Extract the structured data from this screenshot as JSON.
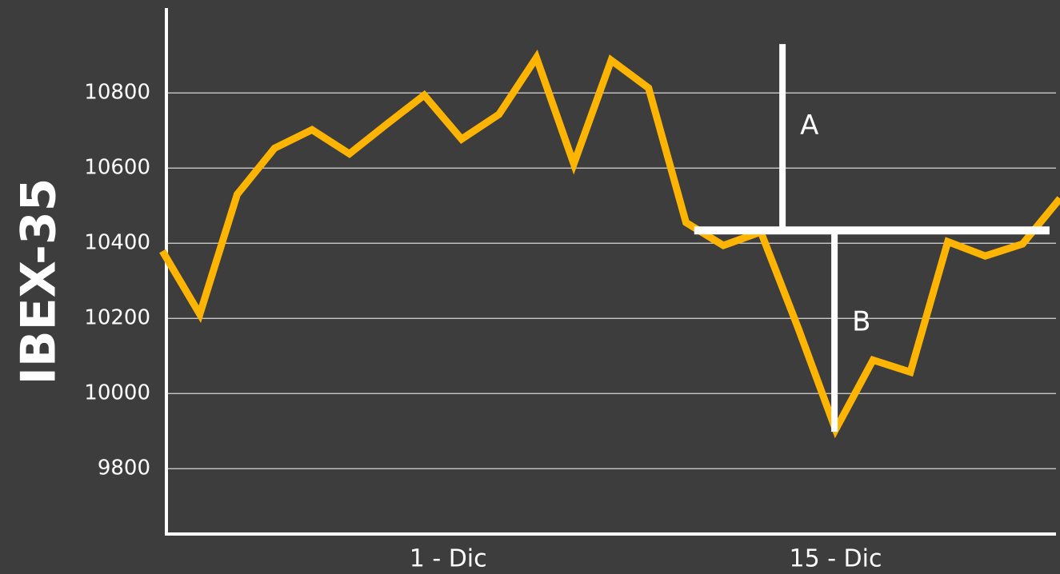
{
  "chart_data": {
    "type": "line",
    "y_label": "IBEX-35",
    "x": [
      0,
      1,
      2,
      3,
      4,
      5,
      6,
      7,
      8,
      9,
      10,
      11,
      12,
      13,
      14,
      15,
      16,
      17,
      18,
      19,
      20,
      21,
      22,
      23,
      24
    ],
    "series": [
      {
        "name": null,
        "color": "#ffb400",
        "values": [
          10379,
          10211,
          10530,
          10653,
          10702,
          10638,
          10717,
          10794,
          10677,
          10743,
          10894,
          10611,
          10887,
          10813,
          10455,
          10394,
          10430,
          10174,
          9904,
          10089,
          10057,
          10404,
          10366,
          10398,
          10519
        ]
      }
    ],
    "xlim": [
      0,
      24
    ],
    "xticks": [
      {
        "value": 7.64,
        "label": "1 - Dic"
      },
      {
        "value": 18.0,
        "label": "15 - Dic"
      }
    ],
    "ylim": [
      9626,
      11026
    ],
    "yticks": [
      9800,
      10000,
      10200,
      10400,
      10600,
      10800
    ],
    "grid": true,
    "reference_line": {
      "value": 10434,
      "x_from": 14.22,
      "x_to": 23.72
    },
    "annotations": [
      {
        "text": "A",
        "x": 16.58,
        "from": 10434,
        "to": 10930
      },
      {
        "text": "B",
        "x": 17.97,
        "from": 10434,
        "to": 9898
      }
    ]
  }
}
